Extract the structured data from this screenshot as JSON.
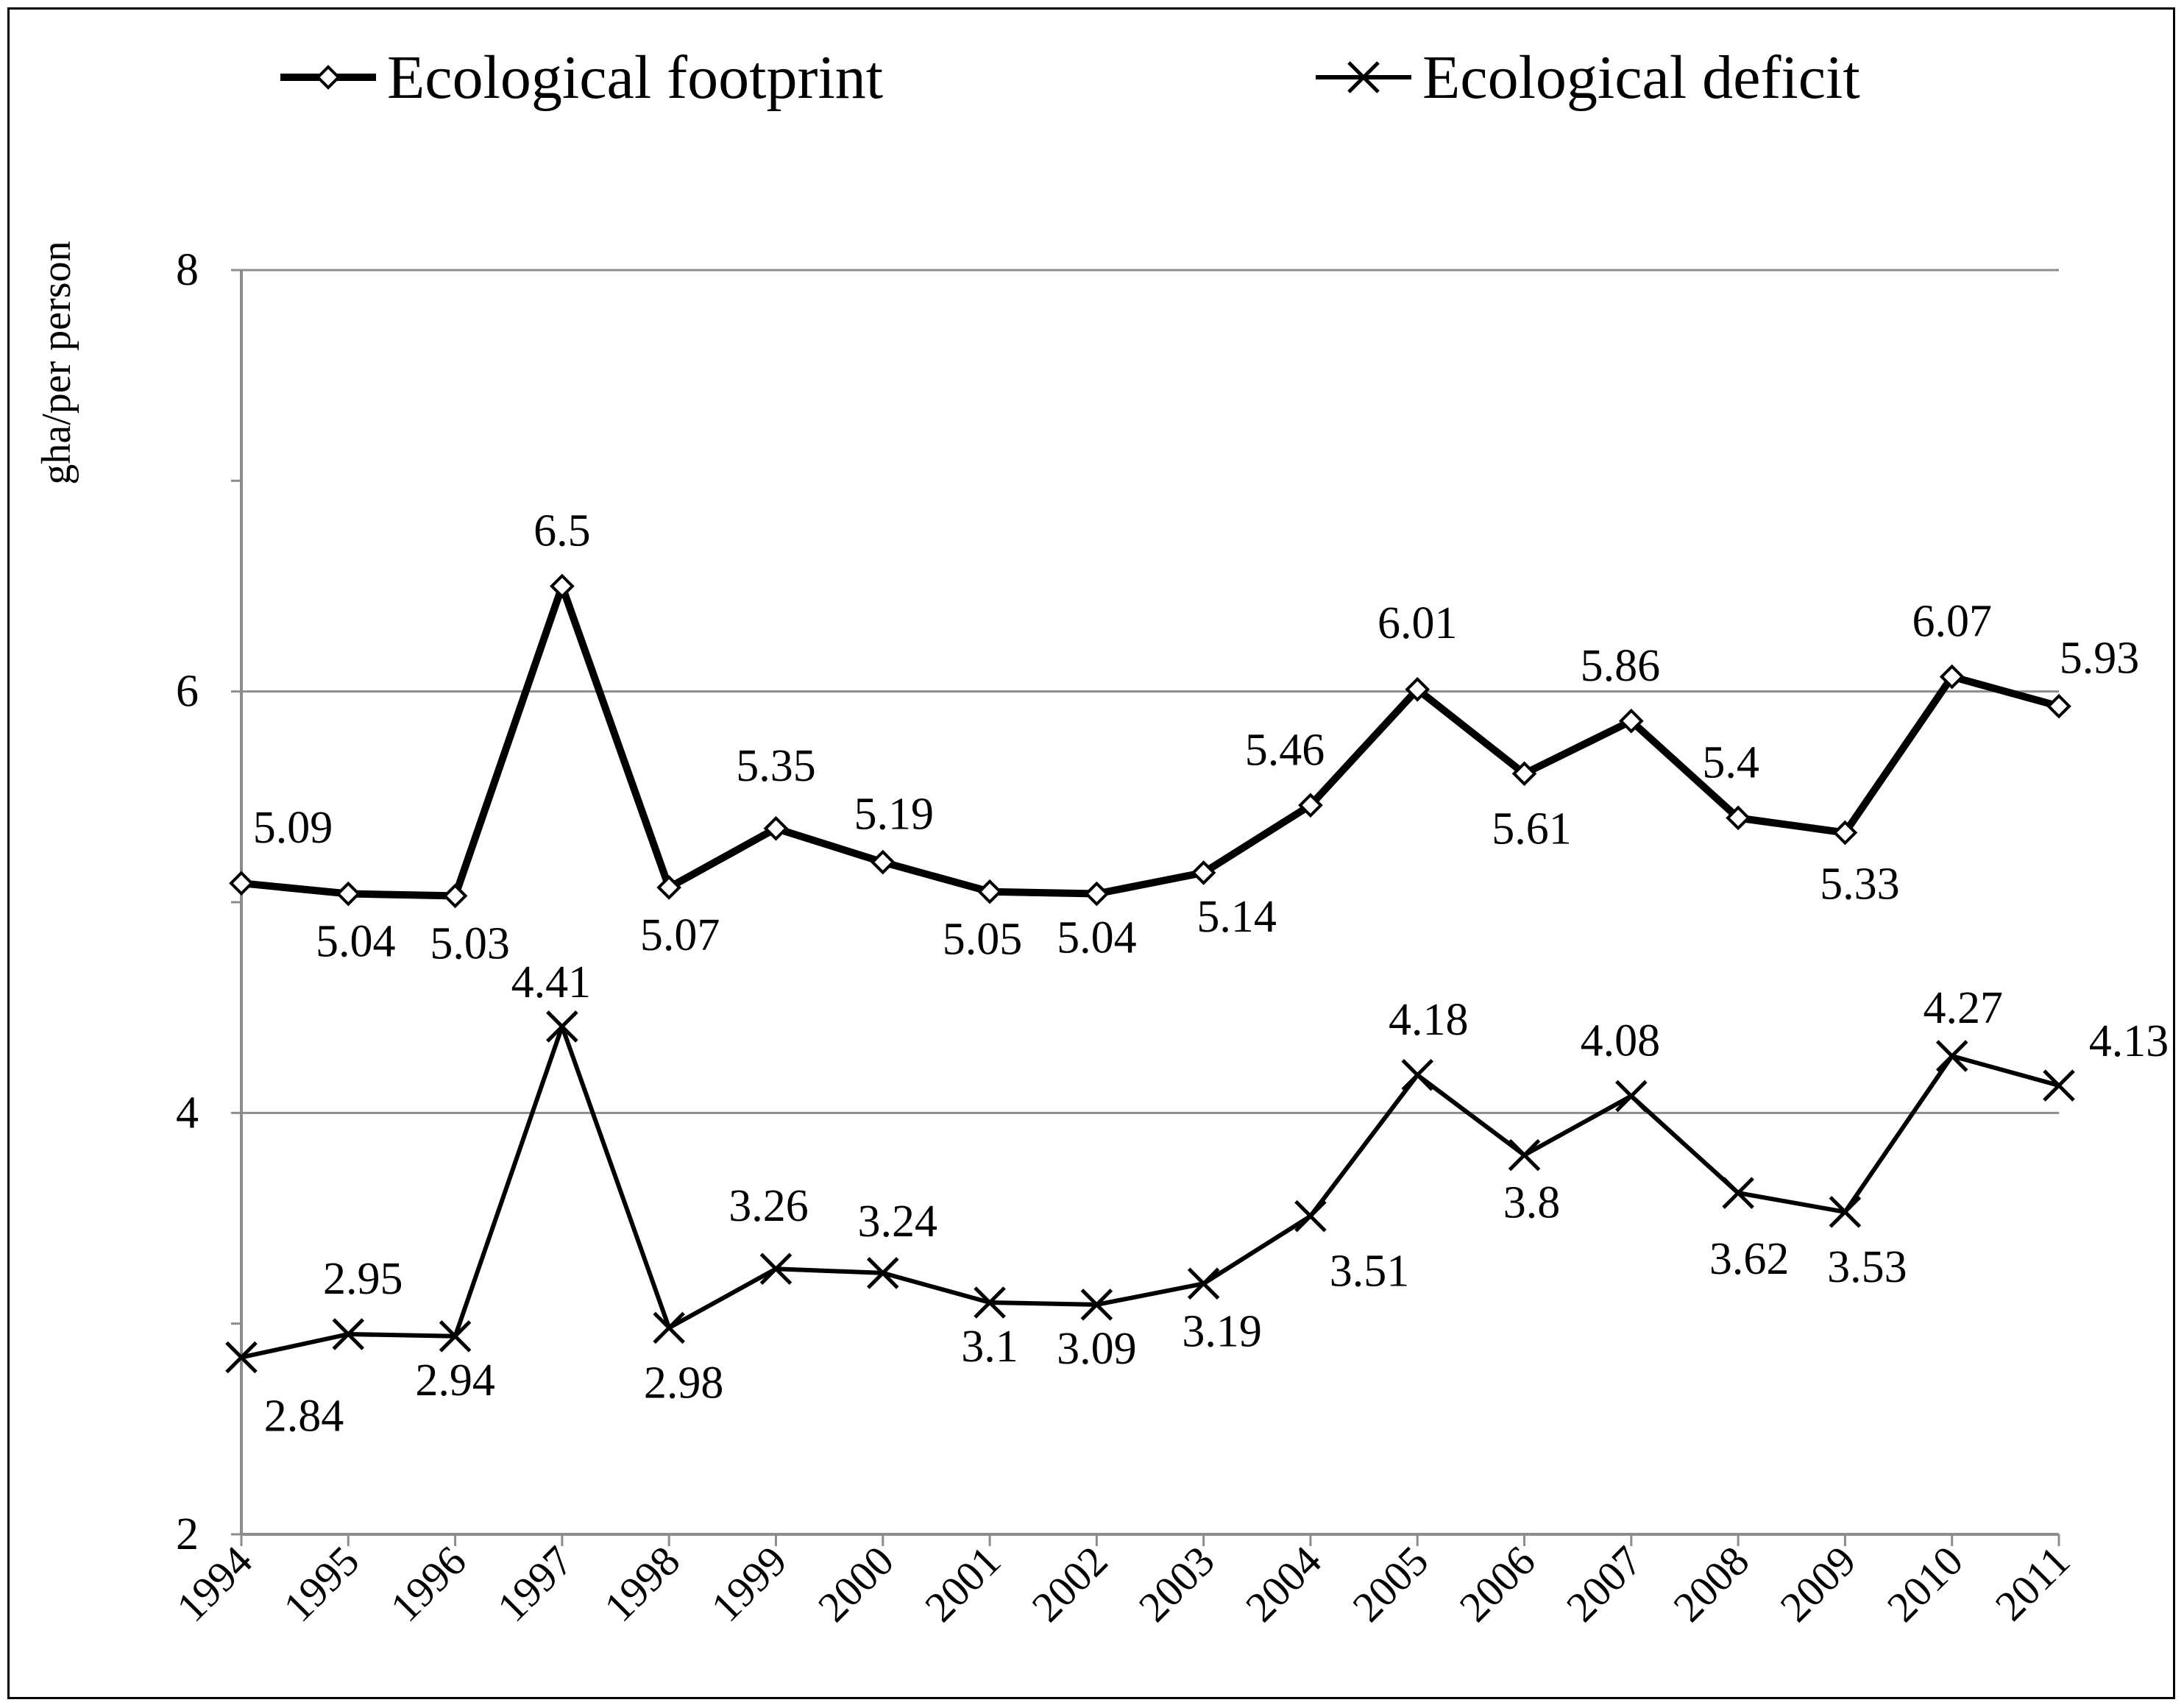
{
  "chart_data": {
    "type": "line",
    "categories": [
      "1994",
      "1995",
      "1996",
      "1997",
      "1998",
      "1999",
      "2000",
      "2001",
      "2002",
      "2003",
      "2004",
      "2005",
      "2006",
      "2007",
      "2008",
      "2009",
      "2010",
      "2011"
    ],
    "series": [
      {
        "name": "Ecological footprint",
        "marker": "diamond",
        "values": [
          5.09,
          5.04,
          5.03,
          6.5,
          5.07,
          5.35,
          5.19,
          5.05,
          5.04,
          5.14,
          5.46,
          6.01,
          5.61,
          5.86,
          5.4,
          5.33,
          6.07,
          5.93
        ],
        "labels": [
          "5.09",
          "5.04",
          "5.03",
          "6.5",
          "5.07",
          "5.35",
          "5.19",
          "5.05",
          "5.04",
          "5.14",
          "5.46",
          "6.01",
          "5.61",
          "5.86",
          "5.4",
          "5.33",
          "6.07",
          "5.93"
        ]
      },
      {
        "name": "Ecological deficit",
        "marker": "x",
        "values": [
          2.84,
          2.95,
          2.94,
          4.41,
          2.98,
          3.26,
          3.24,
          3.1,
          3.09,
          3.19,
          3.51,
          4.18,
          3.8,
          4.08,
          3.62,
          3.53,
          4.27,
          4.13
        ],
        "labels": [
          "2.84",
          "2.95",
          "2.94",
          "4.41",
          "2.98",
          "3.26",
          "3.24",
          "3.1",
          "3.09",
          "3.19",
          "3.51",
          "4.18",
          "3.8",
          "4.08",
          "3.62",
          "3.53",
          "4.27",
          "4.13"
        ]
      }
    ],
    "ylabel": "gha/per person",
    "xlabel": "",
    "ylim": [
      2,
      8
    ],
    "yticks": [
      "2",
      "4",
      "6",
      "8"
    ],
    "grid": true,
    "legend_position": "top"
  },
  "colors": {
    "line": "#000000",
    "grid": "#8c8c8c",
    "axis": "#8c8c8c"
  }
}
